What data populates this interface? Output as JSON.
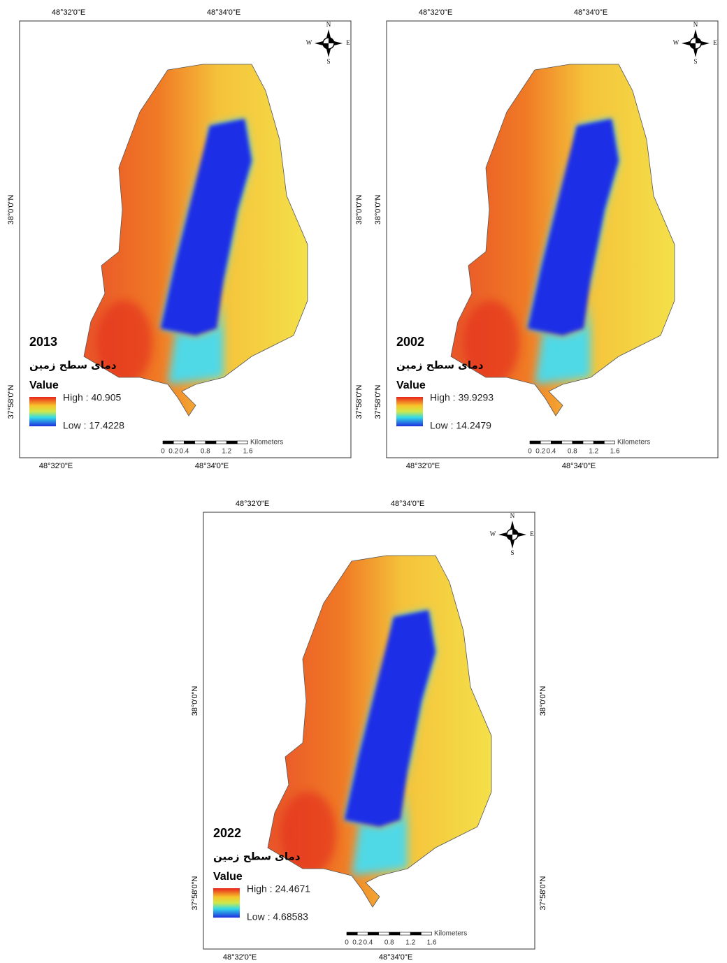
{
  "maps": [
    {
      "year": "2013",
      "legend_title": "دمای سطح زمین",
      "legend_value": "Value",
      "high": "High : 40.905",
      "low": "Low : 17.4228",
      "top_labels": [
        "48°32'0\"E",
        "48°34'0\"E"
      ],
      "bottom_labels": [
        "48°32'0\"E",
        "48°34'0\"E"
      ],
      "left_labels": [
        "38°0'0\"N",
        "37°58'0\"N"
      ],
      "right_labels": [
        "38°0'0\"N",
        "37°58'0\"N"
      ],
      "scale_labels": [
        "0",
        "0.2",
        "0.4",
        "0.8",
        "1.2",
        "1.6"
      ],
      "scale_unit": "Kilometers",
      "compass": [
        "N",
        "S",
        "W",
        "E"
      ]
    },
    {
      "year": "2002",
      "legend_title": "دمای سطح زمین",
      "legend_value": "Value",
      "high": "High : 39.9293",
      "low": "Low : 14.2479",
      "top_labels": [
        "48°32'0\"E",
        "48°34'0\"E"
      ],
      "bottom_labels": [
        "48°32'0\"E",
        "48°34'0\"E"
      ],
      "left_labels": [
        "38°0'0\"N",
        "37°58'0\"N"
      ],
      "right_labels": [],
      "scale_labels": [
        "0",
        "0.2",
        "0.4",
        "0.8",
        "1.2",
        "1.6"
      ],
      "scale_unit": "Kilometers",
      "compass": [
        "N",
        "S",
        "W",
        "E"
      ]
    },
    {
      "year": "2022",
      "legend_title": "دمای سطح زمین",
      "legend_value": "Value",
      "high": "High : 24.4671",
      "low": "Low : 4.68583",
      "top_labels": [
        "48°32'0\"E",
        "48°34'0\"E"
      ],
      "bottom_labels": [
        "48°32'0\"E",
        "48°34'0\"E"
      ],
      "left_labels": [
        "38°0'0\"N",
        "37°58'0\"N"
      ],
      "right_labels": [
        "38°0'0\"N",
        "37°58'0\"N"
      ],
      "scale_labels": [
        "0",
        "0.2",
        "0.4",
        "0.8",
        "1.2",
        "1.6"
      ],
      "scale_unit": "Kilometers",
      "compass": [
        "N",
        "S",
        "W",
        "E"
      ]
    }
  ]
}
